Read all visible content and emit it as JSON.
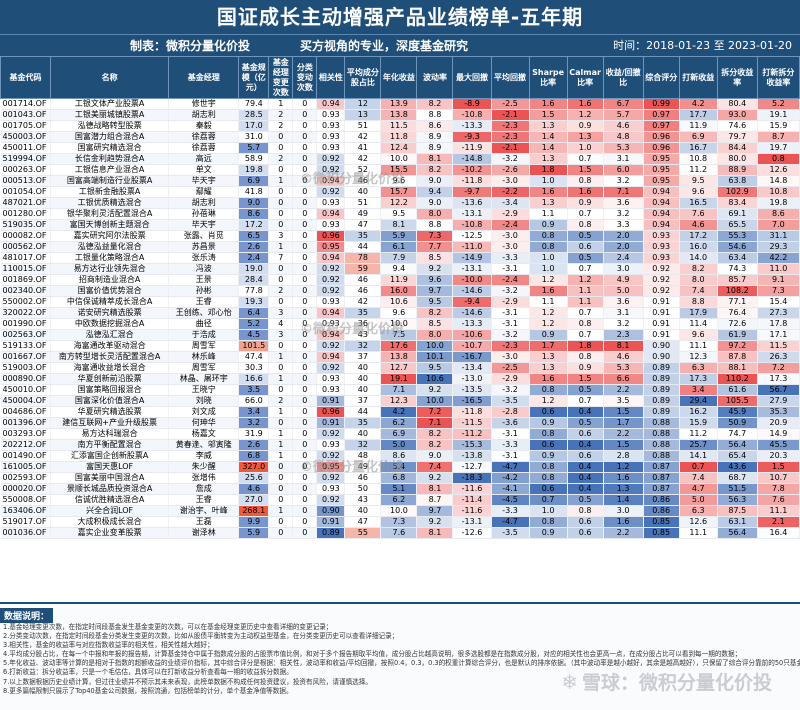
{
  "title": "国证成长主动增强产品业绩榜单-五年期",
  "maker": "制表：微积分量化价投",
  "slogan": "买方视角的专业，深度基金研究",
  "period": "时间：2018-01-23 至 2023-01-20",
  "watermark": "©微积分量化价投",
  "brand": "雪球：微积分量化价投",
  "columns": [
    "基金代码",
    "名称",
    "基金经理",
    "基金规模（亿元）",
    "基金经理变更次数",
    "分类变动次数",
    "相关性",
    "平均成分股占比",
    "年化收益",
    "波动率",
    "最大回撤",
    "平均回撤",
    "Sharpe比率",
    "Calmar比率",
    "收益/回撤比",
    "综合评分",
    "打新收益",
    "拆分收益率",
    "打新拆分收益率"
  ],
  "colors": {
    "header": "#1f4e79"
  },
  "rows": [
    [
      "001714.OF",
      "工银文体产业股票A",
      "修世宇",
      "79.4",
      "1",
      "0",
      "0.94",
      "12",
      "13.9",
      "8.2",
      "-8.9",
      "-2.5",
      "1.6",
      "1.6",
      "6.7",
      "0.99",
      "4.2",
      "80.4",
      "5.2"
    ],
    [
      "001043.OF",
      "工银美丽城镇股票A",
      "胡志利",
      "28.5",
      "2",
      "0",
      "0.93",
      "13",
      "13.8",
      "8.8",
      "-10.8",
      "-2.1",
      "1.5",
      "1.2",
      "5.7",
      "0.97",
      "17.7",
      "93.0",
      "19.1"
    ],
    [
      "001705.OF",
      "泓德战略转型股票",
      "秦毅",
      "17.0",
      "2",
      "0",
      "0.93",
      "51",
      "11.5",
      "8.6",
      "-13.3",
      "-2.3",
      "1.3",
      "0.9",
      "4.6",
      "0.97",
      "11.9",
      "74.6",
      "15.9"
    ],
    [
      "450003.OF",
      "国富潜力组合混合A",
      "徐荔蓉",
      "31.0",
      "0",
      "0",
      "0.93",
      "42",
      "11.8",
      "8.9",
      "-9.3",
      "-2.3",
      "1.4",
      "1.3",
      "4.8",
      "0.96",
      "6.9",
      "79.7",
      "8.7"
    ],
    [
      "450011.OF",
      "国富研究精选混合",
      "徐荔蓉",
      "5.7",
      "0",
      "0",
      "0.93",
      "41",
      "12.4",
      "8.9",
      "-11.9",
      "-2.1",
      "1.4",
      "1.0",
      "5.3",
      "0.96",
      "16.7",
      "84.4",
      "19.7"
    ],
    [
      "519994.OF",
      "长信金利趋势混合A",
      "高远",
      "58.9",
      "2",
      "0",
      "0.92",
      "42",
      "10.0",
      "8.1",
      "-14.8",
      "-3.2",
      "1.3",
      "0.7",
      "3.1",
      "0.95",
      "10.8",
      "80.0",
      "0.8"
    ],
    [
      "000263.OF",
      "工银信息产业混合A",
      "单文",
      "19.8",
      "0",
      "0",
      "0.92",
      "52",
      "15.5",
      "8.2",
      "-10.2",
      "-2.6",
      "1.8",
      "1.5",
      "6.0",
      "0.95",
      "11.2",
      "88.9",
      "12.6"
    ],
    [
      "000513.OF",
      "国富高端制造行业股票A",
      "毕天宇",
      "6.9",
      "1",
      "0",
      "0.94",
      "46",
      "9.6",
      "9.0",
      "-11.8",
      "-3.0",
      "1.0",
      "0.8",
      "3.2",
      "0.95",
      "9.5",
      "63.8",
      "14.8"
    ],
    [
      "001054.OF",
      "工银新金融股票A",
      "鄢耀",
      "41.8",
      "0",
      "0",
      "0.92",
      "40",
      "15.7",
      "9.4",
      "-9.7",
      "-2.2",
      "1.6",
      "1.6",
      "7.1",
      "0.94",
      "9.6",
      "102.9",
      "10.8"
    ],
    [
      "487021.OF",
      "工银优质精选混合",
      "胡志利",
      "9.0",
      "0",
      "0",
      "0.93",
      "51",
      "12.2",
      "9.0",
      "-13.6",
      "-3.4",
      "1.3",
      "0.9",
      "3.6",
      "0.94",
      "16.5",
      "83.4",
      "19.8"
    ],
    [
      "001280.OF",
      "银华聚利灵活配置混合A",
      "孙蓓琳",
      "8.6",
      "0",
      "0",
      "0.94",
      "49",
      "9.5",
      "8.0",
      "-13.1",
      "-2.9",
      "1.1",
      "0.7",
      "3.2",
      "0.94",
      "7.6",
      "69.1",
      "8.6"
    ],
    [
      "519035.OF",
      "富国天博创新主题混合",
      "毕天宇",
      "17.2",
      "0",
      "0",
      "0.93",
      "47",
      "8.1",
      "8.8",
      "-10.8",
      "-2.4",
      "0.9",
      "0.8",
      "3.3",
      "0.94",
      "4.6",
      "65.5",
      "7.0"
    ],
    [
      "000082.OF",
      "嘉实研究阿尔法股票",
      "张露、肖觅",
      "6.5",
      "3",
      "0",
      "0.96",
      "35",
      "5.9",
      "7.3",
      "-12.5",
      "-3.0",
      "0.8",
      "0.5",
      "2.0",
      "0.93",
      "17.2",
      "55.3",
      "31.1"
    ],
    [
      "000562.OF",
      "泓德泓益量化混合",
      "苏昌景",
      "2.6",
      "1",
      "0",
      "0.95",
      "44",
      "6.1",
      "7.7",
      "-11.0",
      "-3.0",
      "0.8",
      "0.6",
      "2.0",
      "0.93",
      "16.0",
      "54.6",
      "29.3"
    ],
    [
      "481017.OF",
      "工银量化策略混合A",
      "张乐涛",
      "2.4",
      "7",
      "0",
      "0.94",
      "78",
      "7.9",
      "8.5",
      "-14.9",
      "-3.3",
      "1.0",
      "0.5",
      "2.4",
      "0.93",
      "14.0",
      "63.4",
      "42.2"
    ],
    [
      "110015.OF",
      "易方达行业领先混合",
      "冯波",
      "19.0",
      "0",
      "0",
      "0.92",
      "59",
      "9.4",
      "9.2",
      "-13.1",
      "-3.1",
      "1.0",
      "0.7",
      "3.0",
      "0.92",
      "8.2",
      "74.3",
      "11.0"
    ],
    [
      "001869.OF",
      "招商制造业混合A",
      "王景",
      "28.4",
      "0",
      "0",
      "0.92",
      "46",
      "11.9",
      "9.6",
      "-10.0",
      "-2.4",
      "1.2",
      "1.2",
      "4.9",
      "0.92",
      "8.0",
      "85.7",
      "9.1"
    ],
    [
      "002340.OF",
      "国富价值优势混合",
      "孙彬",
      "77.8",
      "2",
      "0",
      "0.92",
      "46",
      "16.0",
      "9.7",
      "-14.6",
      "-3.2",
      "1.6",
      "1.1",
      "5.0",
      "0.92",
      "7.4",
      "108.2",
      "7.3"
    ],
    [
      "550002.OF",
      "中信保诚精萃成长混合A",
      "王睿",
      "19.3",
      "0",
      "0",
      "0.93",
      "42",
      "10.6",
      "9.5",
      "-9.4",
      "-2.9",
      "1.1",
      "1.1",
      "3.6",
      "0.91",
      "8.8",
      "77.1",
      "15.4"
    ],
    [
      "320022.OF",
      "诺安研究精选股票",
      "王创练、邓心怡",
      "6.4",
      "3",
      "0",
      "0.94",
      "35",
      "9.6",
      "8.2",
      "-14.6",
      "-3.1",
      "1.2",
      "0.7",
      "3.1",
      "0.91",
      "17.9",
      "76.4",
      "27.3"
    ],
    [
      "001990.OF",
      "中欧数据挖掘混合A",
      "曲径",
      "5.2",
      "4",
      "0",
      "0.93",
      "36",
      "10.0",
      "8.5",
      "-13.3",
      "-3.1",
      "1.2",
      "0.8",
      "3.2",
      "0.91",
      "11.4",
      "72.6",
      "17.8"
    ],
    [
      "002563.OF",
      "泓德泓汇混合",
      "于浩成",
      "4.5",
      "3",
      "0",
      "0.94",
      "43",
      "7.5",
      "8.0",
      "-10.6",
      "-3.2",
      "0.9",
      "0.7",
      "2.3",
      "0.91",
      "9.6",
      "61.9",
      "17.1"
    ],
    [
      "519133.OF",
      "海富通改革驱动混合",
      "周雪军",
      "101.5",
      "0",
      "0",
      "0.92",
      "32",
      "17.6",
      "10.0",
      "-10.7",
      "-2.3",
      "1.7",
      "1.8",
      "8.1",
      "0.90",
      "11.1",
      "97.2",
      "11.5"
    ],
    [
      "001667.OF",
      "南方转型增长灵活配置混合A",
      "林乐峰",
      "47.4",
      "1",
      "0",
      "0.94",
      "37",
      "13.8",
      "10.1",
      "-16.7",
      "-3.0",
      "1.3",
      "0.8",
      "4.6",
      "0.90",
      "12.3",
      "87.8",
      "26.3"
    ],
    [
      "519003.OF",
      "海富通收益增长混合",
      "周雪军",
      "30.3",
      "0",
      "0",
      "0.92",
      "40",
      "12.7",
      "9.5",
      "-13.4",
      "-2.5",
      "1.3",
      "0.9",
      "5.3",
      "0.89",
      "6.3",
      "88.1",
      "7.2"
    ],
    [
      "000890.OF",
      "华夏创新前沿股票",
      "林晶、屠环宇",
      "16.6",
      "1",
      "0",
      "0.93",
      "40",
      "19.1",
      "10.6",
      "-13.0",
      "-2.9",
      "1.6",
      "1.5",
      "6.6",
      "0.89",
      "17.3",
      "110.2",
      "17.3"
    ],
    [
      "450010.OF",
      "国富策略回报混合",
      "王晓宁",
      "3.5",
      "0",
      "0",
      "0.93",
      "40",
      "7.1",
      "9.2",
      "-13.5",
      "-3.2",
      "0.8",
      "0.5",
      "2.2",
      "0.89",
      "3.4",
      "61.6",
      "56.7"
    ],
    [
      "450004.OF",
      "国富深化价值混合A",
      "刘晓",
      "66.0",
      "2",
      "0",
      "0.91",
      "37",
      "12.3",
      "10.0",
      "-16.5",
      "-3.5",
      "1.2",
      "0.7",
      "3.5",
      "0.89",
      "29.4",
      "105.5",
      "27.9"
    ],
    [
      "004686.OF",
      "华夏研究精选股票",
      "刘文成",
      "3.4",
      "1",
      "0",
      "0.96",
      "44",
      "4.2",
      "7.2",
      "-11.8",
      "-2.8",
      "0.6",
      "0.4",
      "1.5",
      "0.89",
      "16.2",
      "45.9",
      "35.3"
    ],
    [
      "001396.OF",
      "建信互联网+产业升级股票",
      "何珅华",
      "3.2",
      "0",
      "0",
      "0.91",
      "35",
      "6.2",
      "7.1",
      "-11.5",
      "-3.6",
      "0.9",
      "0.5",
      "1.7",
      "0.88",
      "15.9",
      "50.9",
      "20.9"
    ],
    [
      "003293.OF",
      "易方达科瑞混合",
      "杨嘉文",
      "31.9",
      "1",
      "0",
      "0.92",
      "40",
      "6.9",
      "8.2",
      "-11.2",
      "-3.1",
      "0.8",
      "0.6",
      "2.2",
      "0.88",
      "11.2",
      "74.7",
      "14.9"
    ],
    [
      "202212.OF",
      "南方平衡配置混合",
      "黄春逢、邬寅隆",
      "2.6",
      "1",
      "0",
      "0.93",
      "32",
      "5.0",
      "8.2",
      "-15.3",
      "-3.3",
      "0.6",
      "0.4",
      "1.5",
      "0.88",
      "25.7",
      "56.4",
      "45.5"
    ],
    [
      "001490.OF",
      "汇添富国企创新股票A",
      "李威",
      "6.8",
      "1",
      "0",
      "0.92",
      "48",
      "8.6",
      "9.0",
      "-13.8",
      "-3.1",
      "0.9",
      "0.6",
      "2.8",
      "0.88",
      "14.1",
      "65.4",
      "20.3"
    ],
    [
      "161005.OF",
      "富国天惠LOF",
      "朱少醒",
      "327.0",
      "0",
      "0",
      "0.95",
      "49",
      "5.4",
      "7.4",
      "-12.7",
      "-4.7",
      "0.8",
      "0.4",
      "1.2",
      "0.87",
      "0.7",
      "43.6",
      "1.5"
    ],
    [
      "002593.OF",
      "国富美丽中国混合A",
      "张增伟",
      "25.6",
      "0",
      "0",
      "0.92",
      "46",
      "6.8",
      "9.2",
      "-18.3",
      "-4.2",
      "0.8",
      "0.4",
      "1.6",
      "0.87",
      "7.4",
      "68.7",
      "10.7"
    ],
    [
      "000020.OF",
      "景顺长城品质投资混合A",
      "詹成",
      "4.6",
      "0",
      "0",
      "0.93",
      "50",
      "5.1",
      "8.1",
      "-11.6",
      "-4.1",
      "0.6",
      "0.4",
      "1.3",
      "0.87",
      "4.7",
      "51.5",
      "7.8"
    ],
    [
      "550008.OF",
      "信诚优胜精选混合A",
      "王睿",
      "27.0",
      "0",
      "0",
      "0.92",
      "43",
      "6.2",
      "8.7",
      "-11.4",
      "-4.5",
      "0.7",
      "0.5",
      "1.4",
      "0.86",
      "5.0",
      "56.3",
      "7.6"
    ],
    [
      "163406.OF",
      "兴全合润LOF",
      "谢治宇、叶峰",
      "268.1",
      "1",
      "0",
      "0.90",
      "40",
      "10.0",
      "9.7",
      "-11.6",
      "-3.3",
      "1.0",
      "0.8",
      "3.0",
      "0.86",
      "6.3",
      "87.5",
      "11.1"
    ],
    [
      "519017.OF",
      "大成积极成长混合",
      "王磊",
      "9.9",
      "0",
      "0",
      "0.91",
      "47",
      "7.3",
      "9.2",
      "-13.1",
      "-4.7",
      "0.8",
      "0.6",
      "1.6",
      "0.85",
      "12.6",
      "63.1",
      "2.1"
    ],
    [
      "001036.OF",
      "嘉实企业变革股票",
      "谢泽林",
      "5.9",
      "0",
      "0",
      "0.89",
      "55",
      "7.6",
      "8.1",
      "-12.6",
      "-3.5",
      "0.9",
      "0.6",
      "2.2",
      "0.85",
      "11.1",
      "56.4",
      "16.4"
    ]
  ],
  "notes_title": "数据说明：",
  "notes": [
    "1.基金经理变更次数，在指定时间段基金发生基金变更的次数，可以在基金经理变更历史中查看详细的变更记录；",
    "2.分类变动次数，在指定时间段基金分类发生变更的次数，比如从股债平衡转变为主动权益型基金，在分类变更历史可以查看详细记录；",
    "3.相关性，基金的收益率与对应指数收益率的相关性，相关性越大越好；",
    "4.平均成分股占比，在每一个中报和年报的报告期，计算基金持仓中属于指数成分股的占股票市值比例，和对于多个报告期取平均值，成分股占比越高说明，很多选股都是在指数成分股，对应的相关性也会更高一点，在成分股占比可以看到每一期的数据；",
    "5.年化收益、波动率等计算的是相对于指数的超额收益的业绩评价指标，其中综合评分是根据：相关性，波动率和收益/平均回撤，按照0.4，0.3，0.3的权重计算综合评分，也是默认的排序依据。（其中波动率是越小越好，其余是越高越好），只保留了综合评分靠前的50只基金列表。",
    "6.打新收益：拆分收益率，只是一个毛估估，具体可以在打新收益分析查看每一期的收益拆分数据。",
    "7.以上数据根据历史业绩计算，但过往业绩并不预示其未来表现，此榜单数据不构成任何投资建议，投资有风险，请谨慎选择。",
    "8.更多篇幅限制只展示了Top40基金公司数据，按照流通，包括榜单的计分，单个基金净值等数据。"
  ]
}
